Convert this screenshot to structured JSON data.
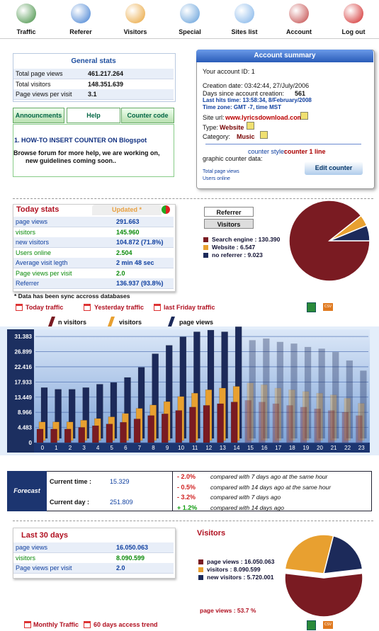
{
  "nav": [
    "Traffic",
    "Referer",
    "Visitors",
    "Special",
    "Sites list",
    "Account",
    "Log out"
  ],
  "general_stats": {
    "title": "General stats",
    "rows": [
      [
        "Total page views",
        "461.217.264"
      ],
      [
        "Total visitors",
        "148.351.639"
      ],
      [
        "Page views per visit",
        "3.1"
      ]
    ]
  },
  "tabs": [
    "Announcments",
    "Help",
    "Counter code"
  ],
  "help": {
    "link": "1. HOW-TO INSERT COUNTER ON Blogspot",
    "text": [
      "Browse forum for more help, we are working on,",
      "new guidelines coming soon.."
    ]
  },
  "account": {
    "title": "Account summary",
    "id": "Your account ID: 1",
    "creation": "Creation date: 03:42:44, 27/July/2006",
    "days_label": "Days since account creation:",
    "days": "561",
    "last_hits": "Last hits time: 13:58:34, 8/February/2008",
    "timezone": "Time zone: GMT -7, time MST",
    "site_label": "Site url:",
    "site": "www.lyricsdownload.com",
    "type_label": "Type:",
    "type": "Website",
    "category_label": "Category:",
    "category": "Music",
    "style_label": "counter style:",
    "style": "counter 1 line",
    "graphic": "graphic counter data:",
    "button": "Edit counter",
    "total": "Total page views",
    "online": "Users online"
  },
  "today": {
    "title": "Today stats",
    "updated": "Updated *",
    "rows": [
      [
        "page views",
        "291.663"
      ],
      [
        "visitors",
        "145.960"
      ],
      [
        "new visitors",
        "104.872 (71.8%)"
      ],
      [
        "Users online",
        "2.504"
      ],
      [
        "Average visit legth",
        "2 min 48 sec"
      ],
      [
        "Page views per visit",
        "2.0"
      ],
      [
        "Referrer",
        "136.937 (93.8%)"
      ]
    ],
    "note": "* Data has been sync accross databases",
    "links": [
      "Today traffic",
      "Yesterday traffic",
      "last Friday traffic"
    ],
    "csv": "CSV"
  },
  "referrer_tabs": [
    "Referrer",
    "Visitors"
  ],
  "forecast": {
    "title": "Forecast",
    "rows": [
      [
        "Current time :",
        "15.329"
      ],
      [
        "Current day :",
        "251.809"
      ]
    ],
    "changes": [
      [
        "- 2.0%",
        "compared with 7 days ago at the same hour"
      ],
      [
        "- 0.5%",
        "compared with 14 days ago at the same hour"
      ],
      [
        "- 3.2%",
        "compared with 7 days ago"
      ],
      [
        "+ 1.2%",
        "compared with 14 days ago"
      ]
    ]
  },
  "last30": {
    "title": "Last 30 days",
    "rows": [
      [
        "page views",
        "16.050.063"
      ],
      [
        "visitors",
        "8.090.599"
      ],
      [
        "Page views per visit",
        "2.0"
      ]
    ]
  },
  "bottom_links": [
    "Monthly Traffic",
    "60 days access trend"
  ],
  "chart_data": [
    {
      "type": "pie",
      "labels": [
        "Search engine : 130.390",
        "Website : 6.547",
        "no referrer : 9.023"
      ],
      "values": [
        130390,
        6547,
        9023
      ],
      "colors": [
        "#7a1b22",
        "#e8a030",
        "#1c2a5a"
      ]
    },
    {
      "type": "bar",
      "categories": [
        "0",
        "1",
        "2",
        "3",
        "4",
        "5",
        "6",
        "7",
        "8",
        "9",
        "10",
        "11",
        "12",
        "13",
        "14",
        "15",
        "16",
        "17",
        "18",
        "19",
        "20",
        "21",
        "22",
        "23"
      ],
      "series": [
        {
          "name": "n visitors",
          "color": "#7a1b22",
          "values": [
            4000,
            4000,
            4000,
            4500,
            5000,
            5500,
            6000,
            7000,
            8000,
            8500,
            9500,
            10500,
            11000,
            11500,
            12000,
            12500,
            12000,
            11500,
            11000,
            10500,
            10000,
            9500,
            9000,
            8000
          ]
        },
        {
          "name": "visitors",
          "color": "#e8a030",
          "values": [
            5500,
            5500,
            5500,
            6000,
            6500,
            7000,
            8000,
            9500,
            10500,
            11500,
            13000,
            14000,
            15000,
            15500,
            16000,
            17000,
            16500,
            15500,
            15000,
            14500,
            14000,
            13500,
            12500,
            11000
          ]
        },
        {
          "name": "page views",
          "color": "#1c2a5a",
          "values": [
            15000,
            14500,
            14500,
            15000,
            16000,
            16500,
            18000,
            21000,
            25000,
            27500,
            30000,
            31500,
            32000,
            31500,
            33000,
            29000,
            29500,
            28500,
            28000,
            27000,
            26500,
            25500,
            23000,
            20000
          ]
        }
      ],
      "ylim": [
        0,
        33500
      ],
      "yticks": [
        0,
        {
          "value": 4483,
          "label": "4.483"
        },
        {
          "value": 8966,
          "label": "8.966"
        },
        {
          "value": 13449,
          "label": "13.449"
        },
        {
          "value": 17933,
          "label": "17.933"
        },
        {
          "value": 22416,
          "label": "22.416"
        },
        {
          "value": 26899,
          "label": "26.899"
        },
        {
          "value": 31383,
          "label": "31.383"
        }
      ],
      "grid": true
    },
    {
      "type": "pie",
      "title": "Visitors",
      "labels": [
        "page views : 16.050.063",
        "visitors : 8.090.599",
        "new visitors : 5.720.001"
      ],
      "values": [
        16050063,
        8090599,
        5720001
      ],
      "colors": [
        "#7a1b22",
        "#e8a030",
        "#1c2a5a"
      ],
      "explode": 0,
      "annotation": "page views : 53.7 %"
    }
  ]
}
